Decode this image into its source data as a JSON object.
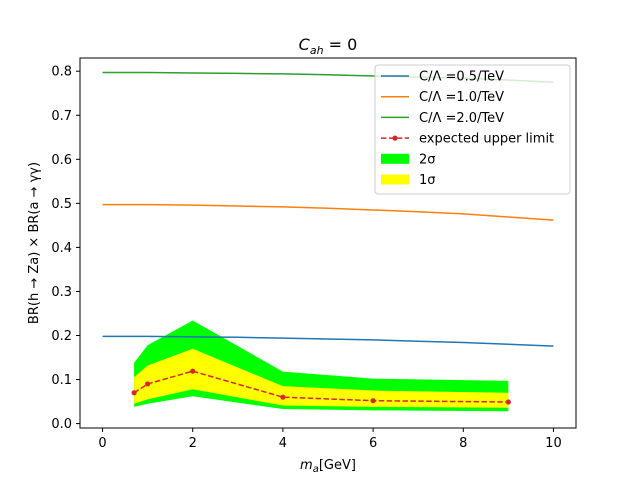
{
  "chart_data": {
    "type": "line",
    "title": "C_ah = 0",
    "title_main": "C",
    "title_sub": "ah",
    "title_rest": " = 0",
    "xlabel": "m_a[GeV]",
    "xlabel_main": "m",
    "xlabel_sub": "a",
    "xlabel_rest": "[GeV]",
    "ylabel": "BR(h → Za) × BR(a → γγ)",
    "xlim": [
      -0.5,
      10.5
    ],
    "ylim": [
      -0.01,
      0.83
    ],
    "xticks": [
      0,
      2,
      4,
      6,
      8,
      10
    ],
    "xtick_labels": [
      "0",
      "2",
      "4",
      "6",
      "8",
      "10"
    ],
    "yticks": [
      0.0,
      0.1,
      0.2,
      0.3,
      0.4,
      0.5,
      0.6,
      0.7,
      0.8
    ],
    "ytick_labels": [
      "0.0",
      "0.1",
      "0.2",
      "0.3",
      "0.4",
      "0.5",
      "0.6",
      "0.7",
      "0.8"
    ],
    "grid": false,
    "legend_position": "top-right",
    "series": [
      {
        "name": "C/Λ =0.5/TeV",
        "color": "#1f77b4",
        "x": [
          0,
          1,
          2,
          3,
          4,
          5,
          6,
          7,
          8,
          9,
          10
        ],
        "y": [
          0.198,
          0.198,
          0.197,
          0.196,
          0.194,
          0.192,
          0.19,
          0.187,
          0.184,
          0.18,
          0.176
        ]
      },
      {
        "name": "C/Λ =1.0/TeV",
        "color": "#ff7f0e",
        "x": [
          0,
          1,
          2,
          3,
          4,
          5,
          6,
          7,
          8,
          9,
          10
        ],
        "y": [
          0.497,
          0.497,
          0.496,
          0.494,
          0.492,
          0.489,
          0.485,
          0.481,
          0.476,
          0.469,
          0.462
        ]
      },
      {
        "name": "C/Λ =2.0/TeV",
        "color": "#2ca02c",
        "x": [
          0,
          1,
          2,
          3,
          4,
          5,
          6,
          7,
          8,
          9,
          10
        ],
        "y": [
          0.797,
          0.797,
          0.796,
          0.795,
          0.794,
          0.792,
          0.789,
          0.787,
          0.784,
          0.78,
          0.775
        ]
      }
    ],
    "expected_limit": {
      "name": "expected upper limit",
      "color": "#d62728",
      "x": [
        0.7,
        1.0,
        2.0,
        4.0,
        6.0,
        9.0
      ],
      "y": [
        0.07,
        0.09,
        0.119,
        0.06,
        0.052,
        0.049
      ]
    },
    "band_2sigma": {
      "name": "2σ",
      "color": "#00ff00",
      "x": [
        0.7,
        1.0,
        2.0,
        4.0,
        6.0,
        9.0
      ],
      "low": [
        0.038,
        0.045,
        0.062,
        0.033,
        0.03,
        0.028
      ],
      "high": [
        0.138,
        0.178,
        0.234,
        0.118,
        0.102,
        0.097
      ]
    },
    "band_1sigma": {
      "name": "1σ",
      "color": "#ffff00",
      "x": [
        0.7,
        1.0,
        2.0,
        4.0,
        6.0,
        9.0
      ],
      "low": [
        0.045,
        0.055,
        0.078,
        0.041,
        0.038,
        0.036
      ],
      "high": [
        0.105,
        0.132,
        0.17,
        0.085,
        0.075,
        0.07
      ]
    }
  }
}
